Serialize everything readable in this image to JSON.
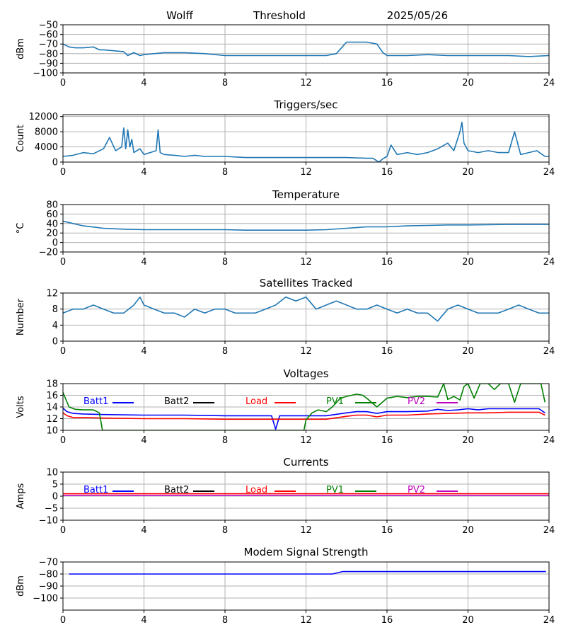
{
  "header": {
    "station": "Wolff",
    "channel": "Threshold",
    "date": "2025/05/26"
  },
  "colors": {
    "default_line": "#1f77b4",
    "grid": "#b0b0b0",
    "batt1": "#0000ff",
    "batt2": "#000000",
    "load": "#ff0000",
    "pv1": "#008000",
    "pv2": "#bf00bf"
  },
  "chart_data": [
    {
      "id": "threshold",
      "type": "line",
      "title": "",
      "ylabel": "dBm",
      "xlim": [
        0,
        24
      ],
      "ylim": [
        -100,
        -50
      ],
      "xticks": [
        0,
        4,
        8,
        12,
        16,
        20,
        24
      ],
      "yticks": [
        -100,
        -90,
        -80,
        -70,
        -60,
        -50
      ],
      "series": [
        {
          "color": "#1f77b4",
          "x": [
            0,
            0.3,
            0.6,
            1.0,
            1.5,
            1.8,
            2.0,
            2.5,
            3.0,
            3.2,
            3.5,
            3.8,
            4.0,
            4.5,
            5.0,
            6.0,
            7.0,
            8.0,
            9.0,
            10.0,
            11.0,
            12.0,
            13.0,
            13.5,
            14.0,
            14.5,
            15.0,
            15.5,
            15.8,
            16.0,
            17.0,
            18.0,
            19.0,
            20.0,
            21.0,
            22.0,
            23.0,
            24.0
          ],
          "y": [
            -70,
            -73,
            -74,
            -74,
            -73,
            -76,
            -76,
            -77,
            -78,
            -82,
            -79,
            -82,
            -81,
            -80,
            -79,
            -79,
            -80,
            -82,
            -82,
            -82,
            -82,
            -82,
            -82,
            -80,
            -68,
            -68,
            -68,
            -70,
            -79,
            -82,
            -82,
            -81,
            -82,
            -82,
            -82,
            -82,
            -83,
            -82
          ]
        }
      ]
    },
    {
      "id": "triggers",
      "type": "line",
      "title": "Triggers/sec",
      "ylabel": "Count",
      "xlim": [
        0,
        24
      ],
      "ylim": [
        0,
        12500
      ],
      "xticks": [
        0,
        4,
        8,
        12,
        16,
        20,
        24
      ],
      "yticks": [
        0,
        4000,
        8000,
        12000
      ],
      "series": [
        {
          "color": "#1f77b4",
          "x": [
            0,
            0.5,
            1.0,
            1.5,
            2.0,
            2.3,
            2.6,
            2.9,
            3.0,
            3.1,
            3.2,
            3.3,
            3.4,
            3.5,
            3.8,
            4.0,
            4.3,
            4.6,
            4.7,
            4.8,
            5.0,
            5.5,
            6.0,
            6.5,
            7.0,
            7.5,
            8.0,
            9.0,
            10.0,
            11.0,
            12.0,
            13.0,
            14.0,
            15.0,
            15.3,
            15.6,
            15.8,
            16.0,
            16.2,
            16.5,
            17.0,
            17.5,
            18.0,
            18.5,
            19.0,
            19.3,
            19.6,
            19.7,
            19.8,
            20.0,
            20.5,
            21.0,
            21.5,
            22.0,
            22.3,
            22.6,
            23.0,
            23.4,
            23.8,
            24.0
          ],
          "y": [
            1500,
            1800,
            2500,
            2200,
            3500,
            6500,
            3000,
            4000,
            9000,
            3500,
            8500,
            4000,
            6000,
            2500,
            3500,
            2000,
            2500,
            3000,
            8500,
            2500,
            2000,
            1800,
            1500,
            1800,
            1500,
            1500,
            1500,
            1200,
            1200,
            1200,
            1200,
            1200,
            1200,
            1000,
            1000,
            0,
            900,
            1500,
            4500,
            2000,
            2500,
            2000,
            2500,
            3500,
            5000,
            3000,
            8000,
            10500,
            5000,
            3000,
            2500,
            3000,
            2500,
            2500,
            8000,
            2000,
            2500,
            3000,
            1500,
            1500
          ]
        }
      ]
    },
    {
      "id": "temperature",
      "type": "line",
      "title": "Temperature",
      "ylabel": "°C",
      "xlim": [
        0,
        24
      ],
      "ylim": [
        -20,
        80
      ],
      "xticks": [
        0,
        4,
        8,
        12,
        16,
        20,
        24
      ],
      "yticks": [
        -20,
        0,
        20,
        40,
        60,
        80
      ],
      "series": [
        {
          "color": "#1f77b4",
          "x": [
            0,
            0.5,
            1.0,
            2.0,
            3.0,
            4.0,
            6.0,
            8.0,
            9.0,
            10.0,
            11.0,
            12.0,
            13.0,
            14.0,
            15.0,
            16.0,
            17.0,
            18.0,
            19.0,
            20.0,
            22.0,
            24.0
          ],
          "y": [
            45,
            40,
            35,
            30,
            28,
            27,
            27,
            27,
            26,
            26,
            26,
            26,
            27,
            30,
            33,
            33,
            35,
            36,
            37,
            37,
            38,
            38
          ]
        }
      ]
    },
    {
      "id": "satellites",
      "type": "line",
      "title": "Satellites Tracked",
      "ylabel": "Number",
      "xlim": [
        0,
        24
      ],
      "ylim": [
        0,
        12
      ],
      "xticks": [
        0,
        4,
        8,
        12,
        16,
        20,
        24
      ],
      "yticks": [
        0,
        4,
        8,
        12
      ],
      "series": [
        {
          "color": "#1f77b4",
          "x": [
            0,
            0.5,
            1.0,
            1.5,
            2.0,
            2.5,
            3.0,
            3.5,
            3.8,
            4.0,
            4.5,
            5.0,
            5.5,
            6.0,
            6.5,
            7.0,
            7.5,
            8.0,
            8.5,
            9.0,
            9.5,
            10.0,
            10.5,
            11.0,
            11.5,
            12.0,
            12.5,
            13.0,
            13.5,
            14.0,
            14.5,
            15.0,
            15.5,
            16.0,
            16.5,
            17.0,
            17.5,
            18.0,
            18.5,
            19.0,
            19.5,
            20.0,
            20.5,
            21.0,
            21.5,
            22.0,
            22.5,
            23.0,
            23.5,
            24.0
          ],
          "y": [
            7,
            8,
            8,
            9,
            8,
            7,
            7,
            9,
            11,
            9,
            8,
            7,
            7,
            6,
            8,
            7,
            8,
            8,
            7,
            7,
            7,
            8,
            9,
            11,
            10,
            11,
            8,
            9,
            10,
            9,
            8,
            8,
            9,
            8,
            7,
            8,
            7,
            7,
            5,
            8,
            9,
            8,
            7,
            7,
            7,
            8,
            9,
            8,
            7,
            7
          ]
        }
      ]
    },
    {
      "id": "voltages",
      "type": "line",
      "title": "Voltages",
      "ylabel": "Volts",
      "xlim": [
        0,
        24
      ],
      "ylim": [
        10,
        18
      ],
      "xticks": [
        0,
        4,
        8,
        12,
        16,
        20,
        24
      ],
      "yticks": [
        10,
        12,
        14,
        16,
        18
      ],
      "legend": "top",
      "series": [
        {
          "name": "Batt1",
          "color": "#0000ff",
          "x": [
            0,
            0.2,
            0.5,
            1.0,
            2.0,
            4.0,
            6.0,
            8.0,
            10.0,
            10.3,
            10.5,
            10.7,
            11.0,
            12.0,
            13.0,
            14.0,
            14.5,
            15.0,
            15.5,
            16.0,
            17.0,
            18.0,
            18.5,
            19.0,
            19.5,
            20.0,
            20.5,
            21.0,
            22.0,
            23.0,
            23.5,
            23.8
          ],
          "y": [
            13.8,
            13.2,
            12.9,
            12.8,
            12.7,
            12.6,
            12.6,
            12.5,
            12.5,
            12.5,
            10.2,
            12.5,
            12.5,
            12.5,
            12.5,
            13.0,
            13.2,
            13.2,
            12.9,
            13.2,
            13.2,
            13.3,
            13.6,
            13.4,
            13.5,
            13.7,
            13.5,
            13.7,
            13.7,
            13.7,
            13.7,
            13.0
          ]
        },
        {
          "name": "Load",
          "color": "#ff0000",
          "x": [
            0,
            0.2,
            0.5,
            1.0,
            2.0,
            4.0,
            6.0,
            8.0,
            10.0,
            12.0,
            13.0,
            14.0,
            14.5,
            15.0,
            15.5,
            16.0,
            17.0,
            18.0,
            19.0,
            20.0,
            21.0,
            22.0,
            23.0,
            23.5,
            23.8
          ],
          "y": [
            13.0,
            12.5,
            12.2,
            12.2,
            12.1,
            12.0,
            12.0,
            11.9,
            11.9,
            11.9,
            11.9,
            12.4,
            12.6,
            12.6,
            12.3,
            12.6,
            12.6,
            12.8,
            12.9,
            13.0,
            13.0,
            13.1,
            13.1,
            13.1,
            12.6
          ]
        },
        {
          "name": "PV1",
          "color": "#008000",
          "x": [
            0,
            0.3,
            0.6,
            1.0,
            1.5,
            1.8,
            1.95,
            2.0,
            11.9,
            12.0,
            12.3,
            12.6,
            13.0,
            13.3,
            13.7,
            14.0,
            14.5,
            14.8,
            15.0,
            15.5,
            16.0,
            16.5,
            17.0,
            17.5,
            18.0,
            18.5,
            18.8,
            19.0,
            19.3,
            19.6,
            19.8,
            20.0,
            20.3,
            20.6,
            21.0,
            21.3,
            21.6,
            22.0,
            22.3,
            22.6,
            23.0,
            23.3,
            23.6,
            23.8
          ],
          "y": [
            16.5,
            14.0,
            13.6,
            13.5,
            13.5,
            13.0,
            10.0,
            10.0,
            10.0,
            11.8,
            13.0,
            13.5,
            13.2,
            14.0,
            15.5,
            15.8,
            16.2,
            16.0,
            15.5,
            14.0,
            15.5,
            15.8,
            15.6,
            15.8,
            15.8,
            15.7,
            18.0,
            15.3,
            15.8,
            15.2,
            17.5,
            18.0,
            15.5,
            18.0,
            18.0,
            17.0,
            18.0,
            18.0,
            14.8,
            18.0,
            18.0,
            18.0,
            18.0,
            14.8
          ]
        }
      ]
    },
    {
      "id": "currents",
      "type": "line",
      "title": "Currents",
      "ylabel": "Amps",
      "xlim": [
        0,
        24
      ],
      "ylim": [
        -10,
        10
      ],
      "xticks": [
        0,
        4,
        8,
        12,
        16,
        20,
        24
      ],
      "yticks": [
        -10,
        -5,
        0,
        5,
        10
      ],
      "legend": "top",
      "series": [
        {
          "name": "Load",
          "color": "#ff0000",
          "x": [
            0,
            24
          ],
          "y": [
            1.0,
            1.0
          ]
        },
        {
          "name": "PV2",
          "color": "#bf00bf",
          "x": [
            0,
            24
          ],
          "y": [
            0.3,
            0.3
          ]
        }
      ]
    },
    {
      "id": "modem",
      "type": "line",
      "title": "Modem Signal Strength",
      "ylabel": "dBm",
      "xlim": [
        0,
        24
      ],
      "ylim": [
        -110,
        -70
      ],
      "xticks": [
        0,
        4,
        8,
        12,
        16,
        20,
        24
      ],
      "yticks": [
        -100,
        -90,
        -80,
        -70
      ],
      "series": [
        {
          "color": "#0000ff",
          "x": [
            0.3,
            13.3,
            13.8,
            23.85
          ],
          "y": [
            -80,
            -80,
            -78,
            -78
          ]
        }
      ]
    }
  ],
  "legend_items": [
    {
      "label": "Batt1",
      "color": "#0000ff"
    },
    {
      "label": "Batt2",
      "color": "#000000"
    },
    {
      "label": "Load",
      "color": "#ff0000"
    },
    {
      "label": "PV1",
      "color": "#008000"
    },
    {
      "label": "PV2",
      "color": "#bf00bf"
    }
  ]
}
